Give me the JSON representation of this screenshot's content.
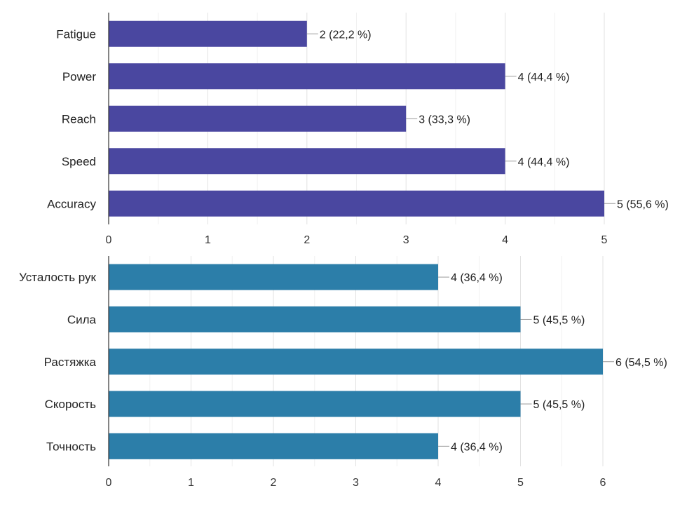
{
  "chart_data": [
    {
      "type": "bar",
      "orientation": "horizontal",
      "categories": [
        "Fatigue",
        "Power",
        "Reach",
        "Speed",
        "Accuracy"
      ],
      "values": [
        2,
        4,
        3,
        4,
        5
      ],
      "data_labels": [
        "2 (22,2 %)",
        "4 (44,4 %)",
        "3 (33,3 %)",
        "4 (44,4 %)",
        "5 (55,6 %)"
      ],
      "xlim": [
        0,
        5
      ],
      "x_ticks": [
        "0",
        "1",
        "2",
        "3",
        "4",
        "5"
      ],
      "grid": true,
      "color": "#4a47a0",
      "title": "",
      "xlabel": "",
      "ylabel": ""
    },
    {
      "type": "bar",
      "orientation": "horizontal",
      "categories": [
        "Усталость рук",
        "Сила",
        "Растяжка",
        "Скорость",
        "Точность"
      ],
      "values": [
        4,
        5,
        6,
        5,
        4
      ],
      "data_labels": [
        "4 (36,4 %)",
        "5 (45,5 %)",
        "6 (54,5 %)",
        "5 (45,5 %)",
        "4 (36,4 %)"
      ],
      "xlim": [
        0,
        6
      ],
      "x_ticks": [
        "0",
        "1",
        "2",
        "3",
        "4",
        "5",
        "6"
      ],
      "grid": true,
      "color": "#2c7ea9",
      "title": "",
      "xlabel": "",
      "ylabel": ""
    }
  ]
}
